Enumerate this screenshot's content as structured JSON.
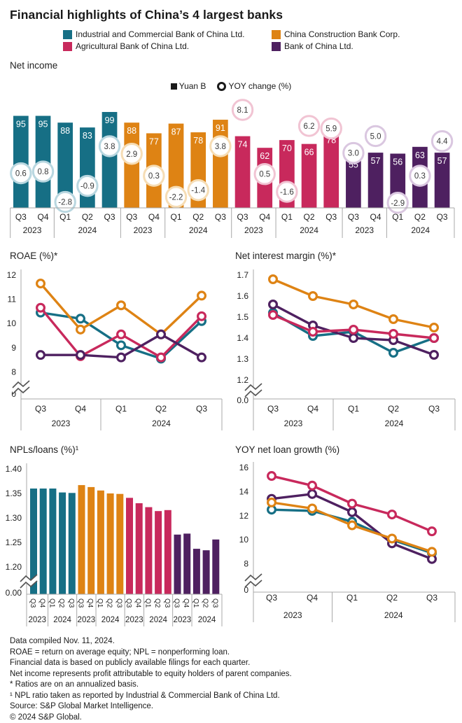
{
  "title": "Financial highlights of China’s 4 largest banks",
  "banks": [
    {
      "id": "icbc",
      "label": "Industrial and Commercial Bank of China Ltd.",
      "color": "#166f85",
      "ring": "#b9d7e0"
    },
    {
      "id": "ccb",
      "label": "China Construction Bank Corp.",
      "color": "#de8314",
      "ring": "#f6ddb5"
    },
    {
      "id": "abc",
      "label": "Agricultural Bank of China Ltd.",
      "color": "#c8295c",
      "ring": "#f1c4d3"
    },
    {
      "id": "boc",
      "label": "Bank of China Ltd.",
      "color": "#4e2060",
      "ring": "#dac7e0"
    }
  ],
  "chart_data": [
    {
      "id": "net_income",
      "type": "bar",
      "title": "Net income",
      "legend": {
        "bar_label": "Yuan B",
        "circle_label": "YOY change (%)"
      },
      "quarters": [
        "Q3",
        "Q4",
        "Q1",
        "Q2",
        "Q3"
      ],
      "years": [
        "2023",
        "2024"
      ],
      "categories": [
        "Q3 2023",
        "Q4 2023",
        "Q1 2024",
        "Q2 2024",
        "Q3 2024"
      ],
      "series": [
        {
          "bank": "icbc",
          "name": "Industrial and Commercial Bank of China Ltd.",
          "values": [
            95,
            95,
            88,
            83,
            99
          ],
          "yoy_change_pct": [
            0.6,
            0.8,
            -2.8,
            -0.9,
            3.8
          ]
        },
        {
          "bank": "ccb",
          "name": "China Construction Bank Corp.",
          "values": [
            88,
            77,
            87,
            78,
            91
          ],
          "yoy_change_pct": [
            2.9,
            0.3,
            -2.2,
            -1.4,
            3.8
          ]
        },
        {
          "bank": "abc",
          "name": "Agricultural Bank of China Ltd.",
          "values": [
            74,
            62,
            70,
            66,
            78
          ],
          "yoy_change_pct": [
            8.1,
            0.5,
            -1.6,
            6.2,
            5.9
          ]
        },
        {
          "bank": "boc",
          "name": "Bank of China Ltd.",
          "values": [
            55,
            57,
            56,
            63,
            57
          ],
          "yoy_change_pct": [
            3.0,
            5.0,
            -2.9,
            0.3,
            4.4
          ]
        }
      ]
    },
    {
      "id": "roae",
      "type": "line",
      "title": "ROAE (%)*",
      "y_ticks": [
        "12",
        "11",
        "10",
        "9",
        "8"
      ],
      "zero_label": "0",
      "ylim": [
        8,
        12
      ],
      "quarters": [
        "Q3",
        "Q4",
        "Q1",
        "Q2",
        "Q3"
      ],
      "years": [
        "2023",
        "2024"
      ],
      "series": [
        {
          "bank": "icbc",
          "name": "Industrial and Commercial Bank of China Ltd.",
          "values": [
            10.45,
            10.2,
            9.1,
            8.55,
            10.1
          ]
        },
        {
          "bank": "ccb",
          "name": "China Construction Bank Corp.",
          "values": [
            11.65,
            9.75,
            10.75,
            9.55,
            11.15
          ]
        },
        {
          "bank": "abc",
          "name": "Agricultural Bank of China Ltd.",
          "values": [
            10.65,
            8.65,
            9.55,
            8.6,
            10.3
          ]
        },
        {
          "bank": "boc",
          "name": "Bank of China Ltd.",
          "values": [
            8.7,
            8.7,
            8.6,
            9.55,
            8.6
          ]
        }
      ]
    },
    {
      "id": "nim",
      "type": "line",
      "title": "Net interest margin (%)*",
      "y_ticks": [
        "1.7",
        "1.6",
        "1.5",
        "1.4",
        "1.3",
        "1.2"
      ],
      "zero_label": "0.0",
      "ylim": [
        1.2,
        1.7
      ],
      "quarters": [
        "Q3",
        "Q4",
        "Q1",
        "Q2",
        "Q3"
      ],
      "years": [
        "2023",
        "2024"
      ],
      "series": [
        {
          "bank": "icbc",
          "name": "Industrial and Commercial Bank of China Ltd.",
          "values": [
            1.52,
            1.41,
            1.43,
            1.33,
            1.4
          ]
        },
        {
          "bank": "ccb",
          "name": "China Construction Bank Corp.",
          "values": [
            1.68,
            1.6,
            1.56,
            1.49,
            1.45
          ]
        },
        {
          "bank": "abc",
          "name": "Agricultural Bank of China Ltd.",
          "values": [
            1.51,
            1.43,
            1.44,
            1.42,
            1.4
          ]
        },
        {
          "bank": "boc",
          "name": "Bank of China Ltd.",
          "values": [
            1.56,
            1.46,
            1.4,
            1.39,
            1.32
          ]
        }
      ]
    },
    {
      "id": "npl",
      "type": "bar",
      "title": "NPLs/loans (%)¹",
      "y_ticks": [
        "1.40",
        "1.35",
        "1.30",
        "1.25",
        "1.20"
      ],
      "zero_label": "0.00",
      "ylim": [
        1.2,
        1.4
      ],
      "quarters": [
        "Q3",
        "Q4",
        "Q1",
        "Q2",
        "Q3"
      ],
      "years": [
        "2023",
        "2024"
      ],
      "series": [
        {
          "bank": "icbc",
          "name": "Industrial and Commercial Bank of China Ltd.",
          "values": [
            1.36,
            1.36,
            1.36,
            1.352,
            1.351
          ]
        },
        {
          "bank": "ccb",
          "name": "China Construction Bank Corp.",
          "values": [
            1.367,
            1.363,
            1.356,
            1.35,
            1.349
          ]
        },
        {
          "bank": "abc",
          "name": "Agricultural Bank of China Ltd.",
          "values": [
            1.341,
            1.33,
            1.322,
            1.314,
            1.316
          ]
        },
        {
          "bank": "boc",
          "name": "Bank of China Ltd.",
          "values": [
            1.266,
            1.268,
            1.237,
            1.234,
            1.256
          ]
        }
      ]
    },
    {
      "id": "loan_growth",
      "type": "line",
      "title": "YOY net loan growth (%)",
      "y_ticks": [
        "16",
        "14",
        "12",
        "10",
        "8"
      ],
      "zero_label": "0",
      "ylim": [
        8,
        16
      ],
      "quarters": [
        "Q3",
        "Q4",
        "Q1",
        "Q2",
        "Q3"
      ],
      "years": [
        "2023",
        "2024"
      ],
      "series": [
        {
          "bank": "icbc",
          "name": "Industrial and Commercial Bank of China Ltd.",
          "values": [
            12.5,
            12.4,
            11.5,
            10.0,
            8.9
          ]
        },
        {
          "bank": "ccb",
          "name": "China Construction Bank Corp.",
          "values": [
            13.1,
            12.6,
            11.2,
            10.1,
            9.0
          ]
        },
        {
          "bank": "abc",
          "name": "Agricultural Bank of China Ltd.",
          "values": [
            15.3,
            14.5,
            13.0,
            12.1,
            10.7
          ]
        },
        {
          "bank": "boc",
          "name": "Bank of China Ltd.",
          "values": [
            13.4,
            13.8,
            12.3,
            9.7,
            8.4
          ]
        }
      ]
    }
  ],
  "footnotes": [
    "Data compiled Nov. 11, 2024.",
    "ROAE = return on average equity; NPL = nonperforming loan.",
    "Financial data is based on publicly available filings for each quarter.",
    "Net income represents profit attributable to equity holders of parent companies.",
    "* Ratios are on an annualized basis.",
    "¹ NPL ratio taken as reported by Industrial & Commercial Bank of China Ltd.",
    "Source: S&P Global Market Intelligence.",
    "© 2024 S&P Global."
  ]
}
